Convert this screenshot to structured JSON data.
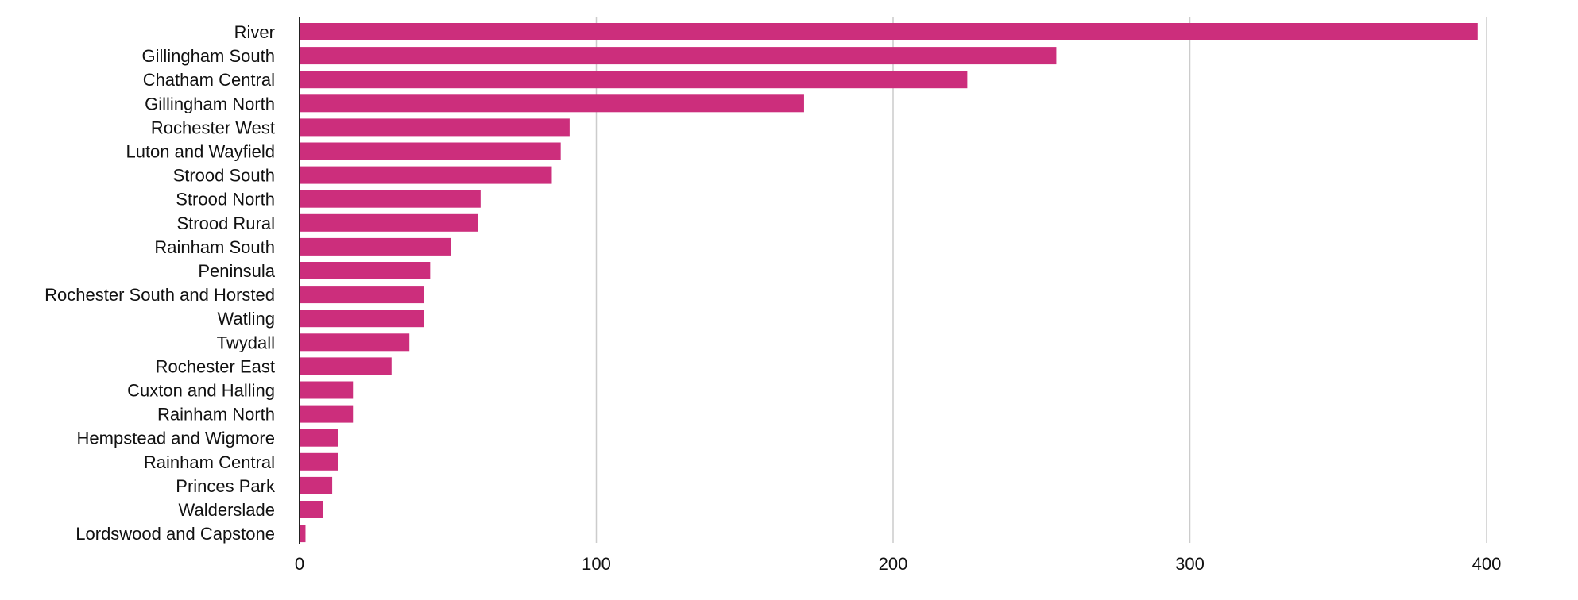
{
  "chart_data": {
    "type": "bar",
    "orientation": "horizontal",
    "title": "",
    "xlabel": "",
    "ylabel": "",
    "xlim": [
      0,
      430
    ],
    "xticks": [
      0,
      100,
      200,
      300,
      400
    ],
    "grid": true,
    "bar_color": "#CC2E7C",
    "categories": [
      "River",
      "Gillingham South",
      "Chatham Central",
      "Gillingham North",
      "Rochester West",
      "Luton and Wayfield",
      "Strood South",
      "Strood North",
      "Strood Rural",
      "Rainham South",
      "Peninsula",
      "Rochester South and Horsted",
      "Watling",
      "Twydall",
      "Rochester East",
      "Cuxton and Halling",
      "Rainham North",
      "Hempstead and Wigmore",
      "Rainham Central",
      "Princes Park",
      "Walderslade",
      "Lordswood and Capstone"
    ],
    "values": [
      397,
      255,
      225,
      170,
      91,
      88,
      85,
      61,
      60,
      51,
      44,
      42,
      42,
      37,
      31,
      18,
      18,
      13,
      13,
      11,
      8,
      2
    ]
  }
}
